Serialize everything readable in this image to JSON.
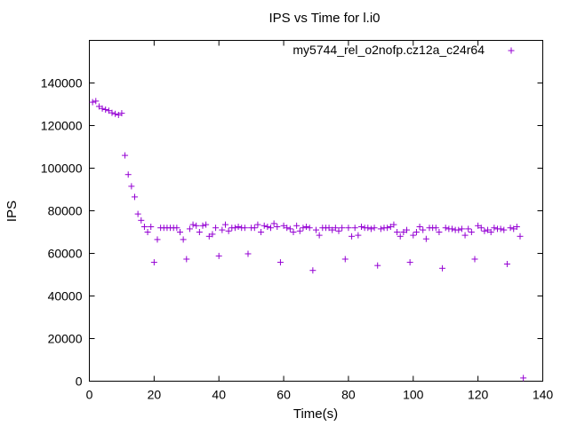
{
  "chart_data": {
    "type": "scatter",
    "title": "IPS vs Time for l.i0",
    "xlabel": "Time(s)",
    "ylabel": "IPS",
    "xlim": [
      0,
      140
    ],
    "ylim": [
      0,
      160000
    ],
    "x_ticks": [
      0,
      20,
      40,
      60,
      80,
      100,
      120,
      140
    ],
    "y_ticks": [
      0,
      20000,
      40000,
      60000,
      80000,
      100000,
      120000,
      140000
    ],
    "x_tick_labels": [
      "0",
      "20",
      "40",
      "60",
      "80",
      "100",
      "120",
      "140"
    ],
    "y_tick_labels": [
      "0",
      "20000",
      "40000",
      "60000",
      "80000",
      "100000",
      "120000",
      "140000"
    ],
    "grid": false,
    "legend_position": "top-right",
    "marker": "+",
    "series": [
      {
        "name": "my5744_rel_o2nofp.cz12a_c24r64",
        "color": "#9400d3",
        "points": [
          [
            1,
            131000
          ],
          [
            2,
            131500
          ],
          [
            3,
            129000
          ],
          [
            4,
            128000
          ],
          [
            5,
            127500
          ],
          [
            6,
            127000
          ],
          [
            7,
            126000
          ],
          [
            8,
            125500
          ],
          [
            9,
            125000
          ],
          [
            10,
            125800
          ],
          [
            11,
            106000
          ],
          [
            12,
            97000
          ],
          [
            13,
            91500
          ],
          [
            14,
            86500
          ],
          [
            15,
            78500
          ],
          [
            16,
            75500
          ],
          [
            17,
            72500
          ],
          [
            18,
            70000
          ],
          [
            19,
            72500
          ],
          [
            20,
            55800
          ],
          [
            21,
            66500
          ],
          [
            22,
            72000
          ],
          [
            23,
            72000
          ],
          [
            24,
            72000
          ],
          [
            25,
            72000
          ],
          [
            26,
            72000
          ],
          [
            27,
            72000
          ],
          [
            28,
            70000
          ],
          [
            29,
            66500
          ],
          [
            30,
            57300
          ],
          [
            31,
            71500
          ],
          [
            32,
            73500
          ],
          [
            33,
            73000
          ],
          [
            34,
            70000
          ],
          [
            35,
            73000
          ],
          [
            36,
            73500
          ],
          [
            37,
            68000
          ],
          [
            38,
            69000
          ],
          [
            39,
            72000
          ],
          [
            40,
            58800
          ],
          [
            41,
            71000
          ],
          [
            42,
            73500
          ],
          [
            43,
            70500
          ],
          [
            44,
            72000
          ],
          [
            45,
            72000
          ],
          [
            46,
            72500
          ],
          [
            47,
            72000
          ],
          [
            48,
            72000
          ],
          [
            49,
            59800
          ],
          [
            50,
            72000
          ],
          [
            51,
            72000
          ],
          [
            52,
            73500
          ],
          [
            53,
            70000
          ],
          [
            54,
            73000
          ],
          [
            55,
            72500
          ],
          [
            56,
            72000
          ],
          [
            57,
            74000
          ],
          [
            58,
            72500
          ],
          [
            59,
            55800
          ],
          [
            60,
            73000
          ],
          [
            61,
            72000
          ],
          [
            62,
            71500
          ],
          [
            63,
            70000
          ],
          [
            64,
            73000
          ],
          [
            65,
            70500
          ],
          [
            66,
            72000
          ],
          [
            67,
            72500
          ],
          [
            68,
            72000
          ],
          [
            69,
            52000
          ],
          [
            70,
            71000
          ],
          [
            71,
            68500
          ],
          [
            72,
            72000
          ],
          [
            73,
            72000
          ],
          [
            74,
            72000
          ],
          [
            75,
            71000
          ],
          [
            76,
            72000
          ],
          [
            77,
            70500
          ],
          [
            78,
            72000
          ],
          [
            79,
            57300
          ],
          [
            80,
            72000
          ],
          [
            81,
            68000
          ],
          [
            82,
            72000
          ],
          [
            83,
            68500
          ],
          [
            84,
            72500
          ],
          [
            85,
            72000
          ],
          [
            86,
            72000
          ],
          [
            87,
            71500
          ],
          [
            88,
            72000
          ],
          [
            89,
            54300
          ],
          [
            90,
            71500
          ],
          [
            91,
            72000
          ],
          [
            92,
            72000
          ],
          [
            93,
            72500
          ],
          [
            94,
            73500
          ],
          [
            95,
            70000
          ],
          [
            96,
            68000
          ],
          [
            97,
            70000
          ],
          [
            98,
            71000
          ],
          [
            99,
            55800
          ],
          [
            100,
            68500
          ],
          [
            101,
            70000
          ],
          [
            102,
            72500
          ],
          [
            103,
            71000
          ],
          [
            104,
            66800
          ],
          [
            105,
            72000
          ],
          [
            106,
            72000
          ],
          [
            107,
            72000
          ],
          [
            108,
            70000
          ],
          [
            109,
            53000
          ],
          [
            110,
            72000
          ],
          [
            111,
            71500
          ],
          [
            112,
            71500
          ],
          [
            113,
            71000
          ],
          [
            114,
            71000
          ],
          [
            115,
            71500
          ],
          [
            116,
            68500
          ],
          [
            117,
            71500
          ],
          [
            118,
            70000
          ],
          [
            119,
            57300
          ],
          [
            120,
            73000
          ],
          [
            121,
            72000
          ],
          [
            122,
            70500
          ],
          [
            123,
            71000
          ],
          [
            124,
            70000
          ],
          [
            125,
            72000
          ],
          [
            126,
            71500
          ],
          [
            127,
            71500
          ],
          [
            128,
            71000
          ],
          [
            129,
            55000
          ],
          [
            130,
            72000
          ],
          [
            131,
            71500
          ],
          [
            132,
            72500
          ],
          [
            133,
            68000
          ],
          [
            134,
            1500
          ]
        ]
      }
    ]
  }
}
